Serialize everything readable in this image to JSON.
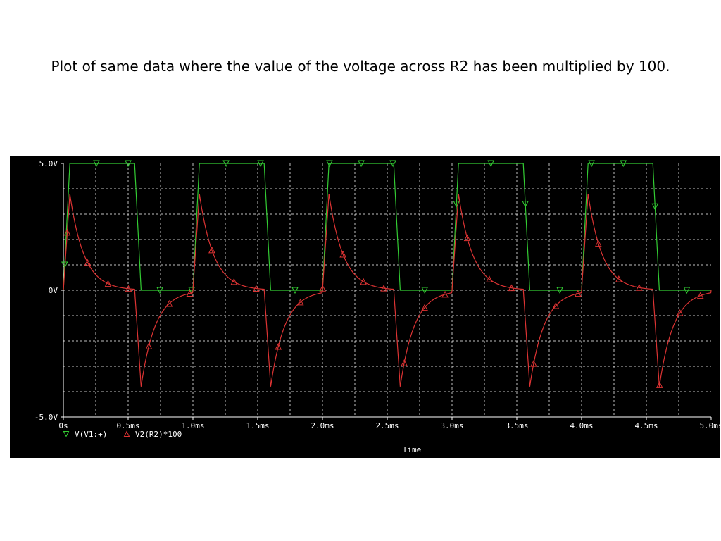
{
  "slide": {
    "title": "Plot of same data where the value of the voltage across R2 has been multiplied by 100."
  },
  "chart_data": {
    "type": "line",
    "xlabel": "Time",
    "ylabel": "",
    "x_unit": "ms",
    "xlim": [
      0,
      5.0
    ],
    "ylim": [
      -5.0,
      5.0
    ],
    "x_ticks": [
      0,
      0.5,
      1.0,
      1.5,
      2.0,
      2.5,
      3.0,
      3.5,
      4.0,
      4.5,
      5.0
    ],
    "x_tick_labels": [
      "0s",
      "0.5ms",
      "1.0ms",
      "1.5ms",
      "2.0ms",
      "2.5ms",
      "3.0ms",
      "3.5ms",
      "4.0ms",
      "4.5ms",
      "5.0ms"
    ],
    "y_ticks": [
      -5.0,
      0,
      5.0
    ],
    "y_tick_labels": [
      "-5.0V",
      "0V",
      "5.0V"
    ],
    "grid": true,
    "legend_position": "bottom-left",
    "period_ms": 1.0,
    "series": [
      {
        "name": "V(V1:+)",
        "color": "#33cc33",
        "marker": "triangle-down",
        "waveform": "square",
        "low": 0,
        "high": 5.0,
        "rise_ms": 0.05,
        "fall_start_ms": 0.55,
        "fall_ms": 0.05
      },
      {
        "name": "V2(R2)*100",
        "color": "#dd3333",
        "marker": "triangle-up",
        "waveform": "decaying-spike",
        "peak": 3.8,
        "trough": -3.8,
        "peak_time_ms": 0.05,
        "trough_time_ms": 0.6,
        "decay_tau_ms": 0.11
      }
    ]
  }
}
